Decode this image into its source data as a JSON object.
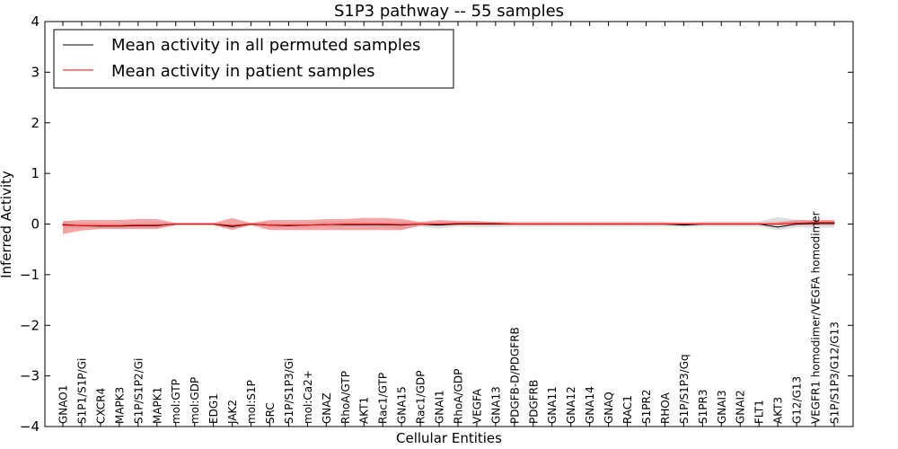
{
  "chart_data": {
    "type": "line",
    "title": "S1P3 pathway -- 55 samples",
    "xlabel": "Cellular Entities",
    "ylabel": "Inferred Activity",
    "ylim": [
      -4,
      4
    ],
    "yticks": [
      -4,
      -3,
      -2,
      -1,
      0,
      1,
      2,
      3,
      4
    ],
    "ytick_labels": [
      "−4",
      "−3",
      "−2",
      "−1",
      "0",
      "1",
      "2",
      "3",
      "4"
    ],
    "grid": false,
    "legend_position": "top-left",
    "categories": [
      "GNAO1",
      "S1P1/S1P/Gi",
      "CXCR4",
      "MAPK3",
      "S1P/S1P2/Gi",
      "MAPK1",
      "mol:GTP",
      "mol:GDP",
      "EDG1",
      "JAK2",
      "mol:S1P",
      "SRC",
      "S1P/S1P3/Gi",
      "mol:Ca2+",
      "GNAZ",
      "RhoA/GTP",
      "AKT1",
      "Rac1/GTP",
      "GNA15",
      "Rac1/GDP",
      "GNAI1",
      "RhoA/GDP",
      "VEGFA",
      "GNA13",
      "PDGFB-D/PDGFRB",
      "PDGFRB",
      "GNA11",
      "GNA12",
      "GNA14",
      "GNAQ",
      "RAC1",
      "S1PR2",
      "RHOA",
      "S1P/S1P3/Gq",
      "S1PR3",
      "GNAI3",
      "GNAI2",
      "FLT1",
      "AKT3",
      "G12/G13",
      "VEGFR1 homodimer/VEGFA homodimer",
      "S1P/S1P3/G12/G13"
    ],
    "series": [
      {
        "name": "Mean activity in all permuted samples",
        "color": "#000000",
        "band_color": "#c8c8c8",
        "values": [
          -0.01,
          -0.03,
          -0.04,
          -0.04,
          -0.03,
          -0.03,
          0.0,
          0.0,
          0.0,
          -0.05,
          0.0,
          -0.02,
          -0.03,
          -0.02,
          -0.01,
          -0.01,
          -0.01,
          -0.01,
          -0.02,
          0.0,
          -0.02,
          0.0,
          0.0,
          0.0,
          0.0,
          0.0,
          0.0,
          0.0,
          0.0,
          0.0,
          0.0,
          0.0,
          0.0,
          -0.02,
          0.0,
          0.0,
          0.0,
          0.0,
          -0.06,
          0.0,
          0.01,
          0.01
        ],
        "band_lower": [
          -0.08,
          -0.08,
          -0.08,
          -0.08,
          -0.08,
          -0.08,
          -0.03,
          -0.03,
          -0.03,
          -0.09,
          -0.03,
          -0.07,
          -0.07,
          -0.07,
          -0.06,
          -0.06,
          -0.06,
          -0.07,
          -0.09,
          -0.05,
          -0.09,
          -0.05,
          -0.06,
          -0.06,
          -0.05,
          -0.05,
          -0.05,
          -0.05,
          -0.05,
          -0.05,
          -0.05,
          -0.05,
          -0.05,
          -0.06,
          -0.05,
          -0.05,
          -0.05,
          -0.05,
          -0.12,
          -0.07,
          -0.07,
          -0.07
        ],
        "band_upper": [
          0.06,
          0.03,
          0.02,
          0.02,
          0.03,
          0.03,
          0.03,
          0.03,
          0.03,
          0.0,
          0.03,
          0.04,
          0.02,
          0.03,
          0.05,
          0.05,
          0.05,
          0.04,
          0.05,
          0.05,
          0.05,
          0.05,
          0.05,
          0.05,
          0.05,
          0.05,
          0.05,
          0.05,
          0.05,
          0.05,
          0.05,
          0.05,
          0.05,
          0.03,
          0.05,
          0.05,
          0.05,
          0.05,
          0.14,
          0.08,
          0.07,
          0.08
        ]
      },
      {
        "name": "Mean activity in patient samples",
        "color": "#ff0000",
        "band_color": "#f08080",
        "values": [
          -0.02,
          -0.03,
          -0.03,
          -0.03,
          -0.02,
          -0.02,
          0.0,
          0.0,
          0.0,
          -0.03,
          0.0,
          -0.02,
          -0.02,
          -0.02,
          -0.01,
          0.0,
          0.0,
          0.0,
          -0.01,
          0.0,
          0.0,
          0.01,
          0.01,
          0.01,
          0.0,
          0.0,
          0.0,
          0.0,
          0.0,
          0.0,
          0.0,
          0.0,
          0.0,
          0.0,
          0.0,
          0.0,
          0.0,
          0.0,
          0.0,
          0.02,
          0.03,
          0.03
        ],
        "band_lower": [
          -0.2,
          -0.13,
          -0.1,
          -0.1,
          -0.1,
          -0.1,
          -0.02,
          -0.02,
          -0.02,
          -0.12,
          -0.02,
          -0.12,
          -0.12,
          -0.12,
          -0.12,
          -0.12,
          -0.12,
          -0.12,
          -0.12,
          -0.03,
          -0.03,
          -0.02,
          -0.02,
          -0.02,
          -0.02,
          -0.02,
          -0.02,
          -0.02,
          -0.02,
          -0.02,
          -0.02,
          -0.02,
          -0.02,
          -0.02,
          -0.02,
          -0.02,
          -0.02,
          -0.02,
          -0.02,
          -0.02,
          -0.02,
          -0.02
        ],
        "band_upper": [
          0.06,
          0.08,
          0.08,
          0.08,
          0.1,
          0.1,
          0.02,
          0.02,
          0.02,
          0.12,
          0.02,
          0.08,
          0.08,
          0.08,
          0.1,
          0.1,
          0.12,
          0.12,
          0.1,
          0.04,
          0.08,
          0.06,
          0.06,
          0.04,
          0.03,
          0.03,
          0.03,
          0.03,
          0.03,
          0.03,
          0.03,
          0.03,
          0.03,
          0.03,
          0.03,
          0.03,
          0.03,
          0.03,
          0.04,
          0.08,
          0.08,
          0.08
        ]
      }
    ]
  }
}
